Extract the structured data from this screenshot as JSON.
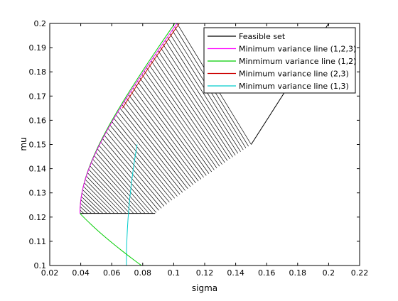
{
  "chart_data": {
    "type": "line",
    "title": "",
    "xlabel": "sigma",
    "ylabel": "mu",
    "xlim": [
      0.02,
      0.22
    ],
    "ylim": [
      0.1,
      0.2
    ],
    "xticks": [
      0.02,
      0.04,
      0.06,
      0.08,
      0.1,
      0.12,
      0.14,
      0.16,
      0.18,
      0.2,
      0.22
    ],
    "yticks": [
      0.1,
      0.11,
      0.12,
      0.13,
      0.14,
      0.15,
      0.16,
      0.17,
      0.18,
      0.19,
      0.2
    ],
    "xtick_labels": [
      "0.02",
      "0.04",
      "0.06",
      "0.08",
      "0.1",
      "0.12",
      "0.14",
      "0.16",
      "0.18",
      "0.2",
      "0.22"
    ],
    "ytick_labels": [
      "0.1",
      "0.11",
      "0.12",
      "0.13",
      "0.14",
      "0.15",
      "0.16",
      "0.17",
      "0.18",
      "0.19",
      "0.2"
    ],
    "grid": false,
    "legend_position": "top-right",
    "legend": [
      {
        "label": "Feasible set",
        "color": "#000000"
      },
      {
        "label": "Minimum variance line (1,2,3)",
        "color": "#ff00ff"
      },
      {
        "label": "Minmimum variance line (1,2)",
        "color": "#00cc00"
      },
      {
        "label": "Minimum variance line (2,3)",
        "color": "#cc0000"
      },
      {
        "label": "Minimum variance line (1,3)",
        "color": "#00cccc"
      }
    ],
    "assets": [
      {
        "mu": 0.1,
        "sigma": 0.07
      },
      {
        "mu": 0.2,
        "sigma": 0.2
      },
      {
        "mu": 0.15,
        "sigma": 0.15
      }
    ],
    "minimum_variance_points": {
      "line_123": {
        "sigma": 0.0395,
        "mu": 0.1215
      },
      "line_12": {
        "sigma": 0.0395,
        "mu": 0.1215
      },
      "line_23": {
        "sigma": 0.093,
        "mu": 0.1655
      },
      "line_13": {
        "sigma": 0.0695,
        "mu": 0.1005
      }
    },
    "feasible_set_lower_boundary_mu": 0.1215,
    "feasible_set_hatch_lines": 56
  }
}
